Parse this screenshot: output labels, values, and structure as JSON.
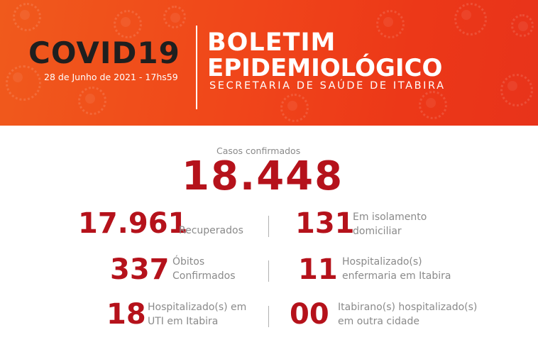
{
  "header": {
    "title": "COVID19",
    "date": "28 de Junho de 2021 - 17hs59",
    "heading_line1": "BOLETIM",
    "heading_line2": "EPIDEMIOLÓGICO",
    "subheading": "SECRETARIA DE SAÚDE DE ITABIRA"
  },
  "confirmed": {
    "label": "Casos confirmados",
    "value": "18.448"
  },
  "stats": {
    "recovered": {
      "value": "17.961",
      "label": "Recuperados"
    },
    "home_isolation": {
      "value": "131",
      "label_line1": "Em isolamento",
      "label_line2": "domiciliar"
    },
    "deaths": {
      "value": "337",
      "label_line1": "Óbitos",
      "label_line2": "Confirmados"
    },
    "ward": {
      "value": "11",
      "label_line1": "Hospitalizado(s)",
      "label_line2": "enfermaria em Itabira"
    },
    "icu": {
      "value": "18",
      "label_line1": "Hospitalizado(s) em",
      "label_line2": "UTI em Itabira"
    },
    "other_city": {
      "value": "00",
      "label_line1": "Itabirano(s) hospitalizado(s)",
      "label_line2": "em outra cidade"
    }
  },
  "colors": {
    "banner_orange": "#f0461a",
    "value_red": "#b5121b",
    "label_gray": "#8a8a8a",
    "title_dark": "#1f1f1f"
  },
  "icons": [
    "virus-icon"
  ]
}
